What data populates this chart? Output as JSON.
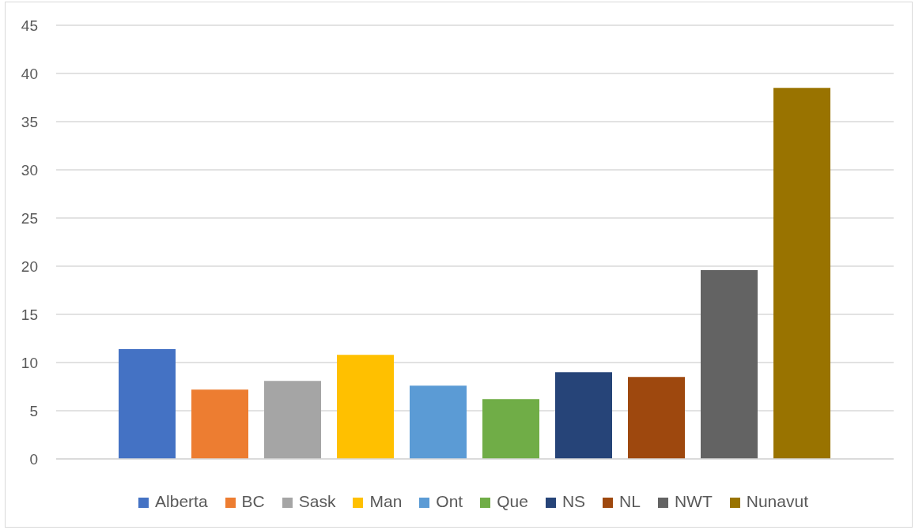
{
  "chart_data": {
    "type": "bar",
    "categories": [
      null
    ],
    "series": [
      {
        "name": "Alberta",
        "color": "#4472c4",
        "values": [
          11.4
        ]
      },
      {
        "name": "BC",
        "color": "#ed7d31",
        "values": [
          7.2
        ]
      },
      {
        "name": "Sask",
        "color": "#a5a5a5",
        "values": [
          8.1
        ]
      },
      {
        "name": "Man",
        "color": "#ffc000",
        "values": [
          10.8
        ]
      },
      {
        "name": "Ont",
        "color": "#5b9bd5",
        "values": [
          7.6
        ]
      },
      {
        "name": "Que",
        "color": "#70ad47",
        "values": [
          6.2
        ]
      },
      {
        "name": "NS",
        "color": "#264478",
        "values": [
          9.0
        ]
      },
      {
        "name": "NL",
        "color": "#9e480e",
        "values": [
          8.5
        ]
      },
      {
        "name": "NWT",
        "color": "#636363",
        "values": [
          19.6
        ]
      },
      {
        "name": "Nunavut",
        "color": "#997300",
        "values": [
          38.5
        ]
      }
    ],
    "ylim": [
      0,
      45
    ],
    "yticks": [
      0,
      5,
      10,
      15,
      20,
      25,
      30,
      35,
      40,
      45
    ],
    "grid": "y",
    "legend": "bottom",
    "tick_labels": "y"
  }
}
